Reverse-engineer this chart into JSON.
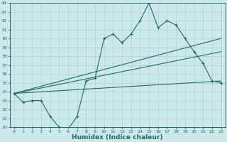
{
  "xlabel": "Humidex (Indice chaleur)",
  "ylabel": "",
  "xlim": [
    -0.5,
    23.5
  ],
  "ylim": [
    30,
    44
  ],
  "yticks": [
    30,
    31,
    32,
    33,
    34,
    35,
    36,
    37,
    38,
    39,
    40,
    41,
    42,
    43,
    44
  ],
  "xticks": [
    0,
    1,
    2,
    3,
    4,
    5,
    6,
    7,
    8,
    9,
    10,
    11,
    12,
    13,
    14,
    15,
    16,
    17,
    18,
    19,
    20,
    21,
    22,
    23
  ],
  "bg_color": "#cce8e8",
  "grid_color": "#aad0d0",
  "line_color": "#1a6b6b",
  "line1_x": [
    0,
    1,
    2,
    3,
    4,
    5,
    6,
    7,
    8,
    9,
    10,
    11,
    12,
    13,
    14,
    15,
    16,
    17,
    18,
    19,
    20,
    21,
    22,
    23
  ],
  "line1_y": [
    33.8,
    32.8,
    33.0,
    33.0,
    31.2,
    30.0,
    29.8,
    31.2,
    35.2,
    35.5,
    40.0,
    40.5,
    39.5,
    40.5,
    42.0,
    44.0,
    41.2,
    42.0,
    41.5,
    40.0,
    38.5,
    37.2,
    35.2,
    35.0
  ],
  "line2_x": [
    0,
    23
  ],
  "line2_y": [
    33.8,
    40.0
  ],
  "line3_x": [
    0,
    23
  ],
  "line3_y": [
    33.8,
    38.5
  ],
  "line4_x": [
    0,
    23
  ],
  "line4_y": [
    33.8,
    35.2
  ]
}
